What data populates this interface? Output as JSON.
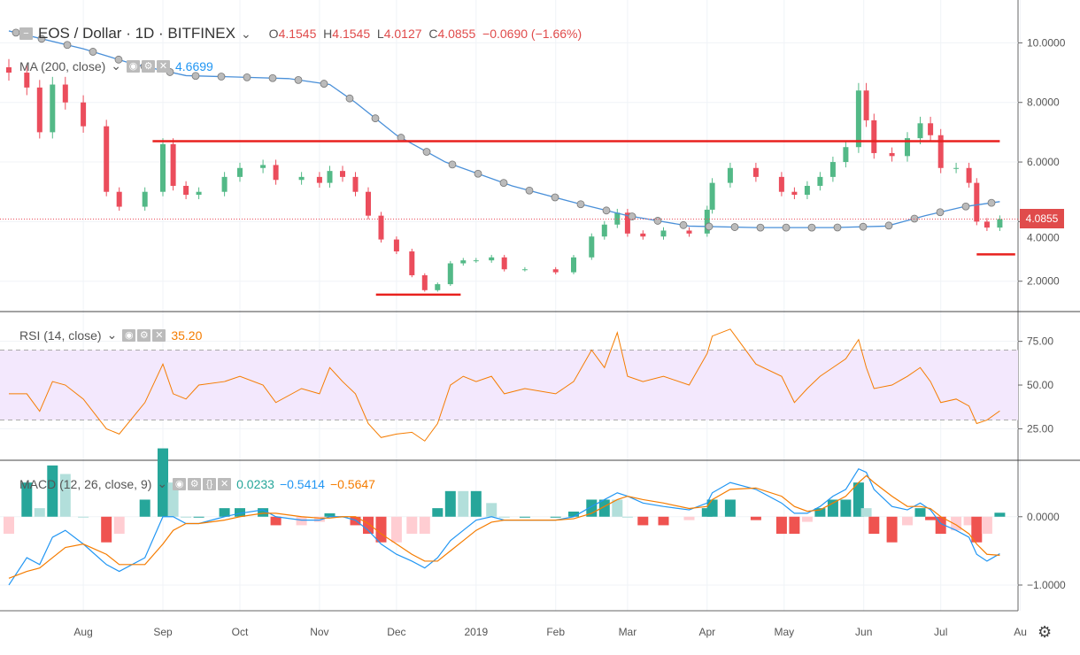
{
  "header": {
    "symbol": "EOS / Dollar · 1D · BITFINEX",
    "open_label": "O",
    "open": "4.1545",
    "high_label": "H",
    "high": "4.1545",
    "low_label": "L",
    "low": "4.0127",
    "close_label": "C",
    "close": "4.0855",
    "change": "−0.0690 (−1.66%)"
  },
  "indicators": {
    "ma": {
      "label": "MA (200, close)",
      "value": "4.6699"
    },
    "rsi": {
      "label": "RSI (14, close)",
      "value": "35.20"
    },
    "macd": {
      "label": "MACD (12, 26, close, 9)",
      "hist": "0.0233",
      "macd": "−0.5414",
      "signal": "−0.5647"
    }
  },
  "last_price_label": "4.0855",
  "colors": {
    "up": "#53b987",
    "down": "#eb4d5c",
    "ma": "#4a90d9",
    "rsi": "#f57c00",
    "rsi_band": "#f3e8fd",
    "macd": "#2196f3",
    "signal": "#f57c00",
    "drawing": "#e8211e"
  },
  "chart_data": {
    "type": "line",
    "x_tick_labels": [
      "Aug",
      "Sep",
      "Oct",
      "Nov",
      "Dec",
      "2019",
      "Feb",
      "Mar",
      "Apr",
      "May",
      "Jun",
      "Jul",
      "Au"
    ],
    "x_tick_dates": [
      "2018-08-01",
      "2018-09-01",
      "2018-10-01",
      "2018-11-01",
      "2018-12-01",
      "2019-01-01",
      "2019-02-01",
      "2019-03-01",
      "2019-04-01",
      "2019-05-01",
      "2019-06-01",
      "2019-07-01",
      "2019-08-01"
    ],
    "dates": [
      "2018-07-03",
      "2018-07-10",
      "2018-07-15",
      "2018-07-20",
      "2018-07-25",
      "2018-08-01",
      "2018-08-10",
      "2018-08-15",
      "2018-08-25",
      "2018-09-01",
      "2018-09-05",
      "2018-09-10",
      "2018-09-15",
      "2018-09-25",
      "2018-10-01",
      "2018-10-10",
      "2018-10-15",
      "2018-10-25",
      "2018-11-01",
      "2018-11-05",
      "2018-11-10",
      "2018-11-15",
      "2018-11-20",
      "2018-11-25",
      "2018-12-01",
      "2018-12-07",
      "2018-12-12",
      "2018-12-17",
      "2018-12-22",
      "2018-12-27",
      "2019-01-01",
      "2019-01-07",
      "2019-01-12",
      "2019-01-20",
      "2019-02-01",
      "2019-02-08",
      "2019-02-15",
      "2019-02-20",
      "2019-02-25",
      "2019-03-01",
      "2019-03-07",
      "2019-03-15",
      "2019-03-25",
      "2019-04-01",
      "2019-04-03",
      "2019-04-10",
      "2019-04-20",
      "2019-04-30",
      "2019-05-05",
      "2019-05-10",
      "2019-05-15",
      "2019-05-20",
      "2019-05-25",
      "2019-05-30",
      "2019-06-02",
      "2019-06-05",
      "2019-06-12",
      "2019-06-18",
      "2019-06-23",
      "2019-06-27",
      "2019-07-01",
      "2019-07-07",
      "2019-07-12",
      "2019-07-15",
      "2019-07-19",
      "2019-07-24"
    ],
    "price": {
      "yticks": [
        "10.0000",
        "8.0000",
        "6.0000",
        "4.0000",
        "2.0000"
      ],
      "ylim": [
        1.1,
        11.2
      ],
      "close": [
        9.0,
        8.5,
        7.0,
        8.6,
        8.0,
        7.2,
        5.0,
        4.5,
        5.0,
        6.6,
        5.2,
        4.9,
        5.0,
        5.5,
        5.8,
        5.9,
        5.4,
        5.5,
        5.3,
        5.7,
        5.5,
        5.0,
        4.2,
        3.4,
        3.0,
        2.2,
        1.7,
        1.9,
        2.6,
        2.7,
        2.7,
        2.8,
        2.4,
        2.4,
        2.3,
        2.8,
        3.5,
        3.9,
        4.3,
        3.6,
        3.5,
        3.7,
        3.6,
        4.4,
        5.3,
        5.8,
        5.5,
        5.0,
        4.9,
        5.2,
        5.5,
        6.0,
        6.5,
        8.4,
        7.4,
        6.3,
        6.2,
        6.8,
        7.3,
        6.9,
        5.8,
        5.8,
        5.3,
        4.0,
        3.8,
        4.0855
      ],
      "ma200": {
        "dates": [
          "2018-07-03",
          "2018-08-01",
          "2018-08-20",
          "2018-09-10",
          "2018-10-01",
          "2018-10-20",
          "2018-11-05",
          "2018-11-15",
          "2018-12-01",
          "2018-12-20",
          "2019-01-15",
          "2019-02-10",
          "2019-03-01",
          "2019-03-25",
          "2019-04-20",
          "2019-05-20",
          "2019-06-10",
          "2019-06-25",
          "2019-07-10",
          "2019-07-24"
        ],
        "values": [
          10.4,
          9.8,
          9.3,
          8.9,
          8.85,
          8.8,
          8.6,
          8.0,
          6.9,
          6.0,
          5.2,
          4.6,
          4.2,
          3.85,
          3.8,
          3.8,
          3.85,
          4.2,
          4.5,
          4.67
        ]
      },
      "drawings": [
        {
          "price": 6.7,
          "from": "2018-08-28",
          "to": "2019-07-24"
        },
        {
          "price": 1.55,
          "from": "2018-11-23",
          "to": "2018-12-26"
        },
        {
          "price": 2.9,
          "from": "2019-07-15",
          "to": "2019-07-30"
        }
      ]
    },
    "rsi": {
      "yticks": [
        "75.00",
        "50.00",
        "25.00"
      ],
      "band": [
        30,
        70
      ],
      "ylim": [
        8,
        90
      ],
      "values": [
        45,
        45,
        35,
        52,
        50,
        42,
        25,
        22,
        40,
        62,
        45,
        42,
        50,
        52,
        55,
        50,
        40,
        48,
        45,
        60,
        52,
        45,
        28,
        20,
        22,
        23,
        18,
        28,
        50,
        55,
        52,
        55,
        45,
        48,
        45,
        52,
        70,
        60,
        80,
        55,
        52,
        55,
        50,
        68,
        78,
        82,
        62,
        55,
        40,
        48,
        55,
        60,
        65,
        76,
        60,
        48,
        50,
        55,
        60,
        52,
        40,
        42,
        38,
        28,
        30,
        35.2
      ]
    },
    "macd": {
      "yticks": [
        "0.0000",
        "−1.0000"
      ],
      "ylim": [
        -1.35,
        0.8
      ],
      "macd": [
        -1.0,
        -0.6,
        -0.7,
        -0.3,
        -0.2,
        -0.4,
        -0.7,
        -0.8,
        -0.6,
        0.0,
        0.0,
        -0.1,
        -0.1,
        0.0,
        0.05,
        0.1,
        0.0,
        -0.05,
        -0.05,
        0.0,
        0.0,
        -0.05,
        -0.2,
        -0.4,
        -0.55,
        -0.65,
        -0.75,
        -0.6,
        -0.35,
        -0.2,
        -0.05,
        0.0,
        -0.05,
        -0.05,
        -0.05,
        0.0,
        0.15,
        0.25,
        0.35,
        0.3,
        0.2,
        0.15,
        0.1,
        0.2,
        0.35,
        0.5,
        0.4,
        0.2,
        0.05,
        0.05,
        0.15,
        0.3,
        0.4,
        0.7,
        0.65,
        0.4,
        0.15,
        0.1,
        0.2,
        0.1,
        -0.1,
        -0.2,
        -0.3,
        -0.55,
        -0.65,
        -0.5414
      ],
      "signal": [
        -0.9,
        -0.8,
        -0.75,
        -0.6,
        -0.45,
        -0.4,
        -0.55,
        -0.7,
        -0.7,
        -0.4,
        -0.2,
        -0.1,
        -0.1,
        -0.05,
        0.0,
        0.05,
        0.05,
        0.0,
        -0.02,
        -0.02,
        0.0,
        0.0,
        -0.1,
        -0.25,
        -0.4,
        -0.55,
        -0.65,
        -0.65,
        -0.5,
        -0.35,
        -0.2,
        -0.08,
        -0.05,
        -0.05,
        -0.05,
        -0.03,
        0.05,
        0.15,
        0.25,
        0.3,
        0.25,
        0.2,
        0.12,
        0.15,
        0.25,
        0.4,
        0.42,
        0.3,
        0.15,
        0.08,
        0.1,
        0.2,
        0.3,
        0.5,
        0.6,
        0.5,
        0.3,
        0.15,
        0.15,
        0.12,
        0.0,
        -0.12,
        -0.25,
        -0.4,
        -0.55,
        -0.5647
      ]
    }
  }
}
